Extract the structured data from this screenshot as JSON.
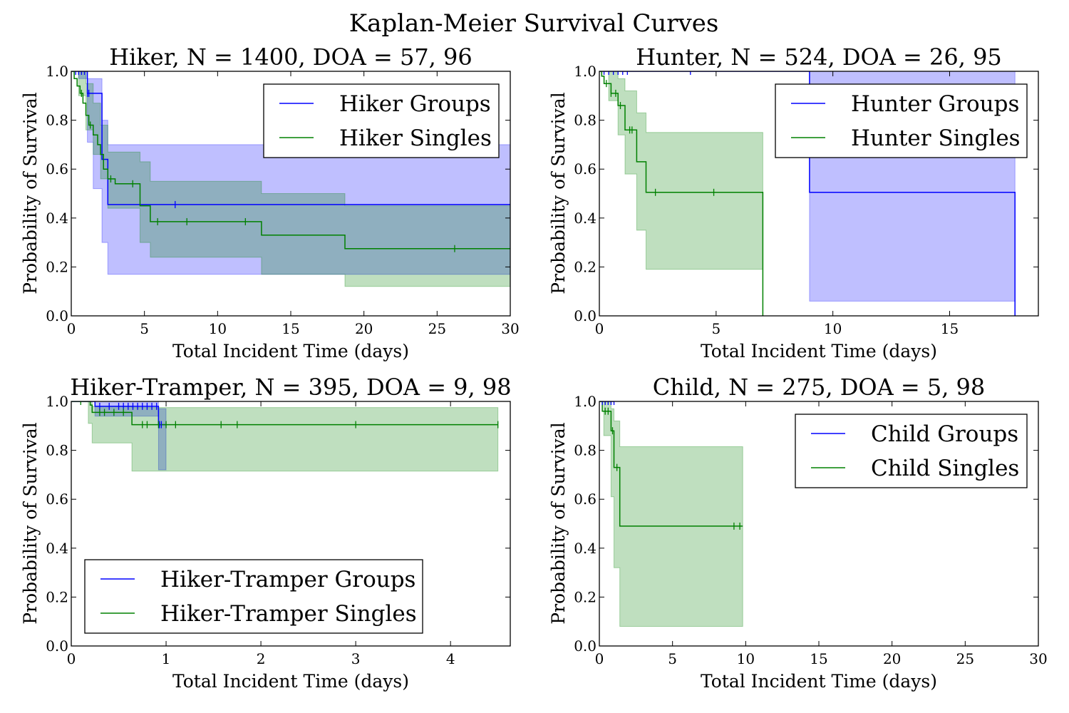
{
  "figure_title": "Kaplan-Meier Survival Curves",
  "colors": {
    "groups": "#0000ff",
    "singles": "#008000",
    "groups_fill": "#0000ff",
    "singles_fill": "#008000"
  },
  "chart_data": [
    {
      "type": "line",
      "title": "Hiker, N = 1400, DOA = 57, 96",
      "xlabel": "Total Incident Time (days)",
      "ylabel": "Probability of Survival",
      "xlim": [
        0,
        30
      ],
      "ylim": [
        0,
        1
      ],
      "xticks": [
        0,
        5,
        10,
        15,
        20,
        25,
        30
      ],
      "yticks": [
        0.0,
        0.2,
        0.4,
        0.6,
        0.8,
        1.0
      ],
      "legend": "upper-right",
      "series": [
        {
          "name": "Hiker Groups",
          "color": "#0000ff",
          "x": [
            0,
            1.1,
            2.1,
            2.5,
            30
          ],
          "y": [
            1.0,
            0.91,
            0.64,
            0.455,
            0.455
          ],
          "ci_x": [
            0,
            0.5,
            1.1,
            1.5,
            2.1,
            2.5,
            30
          ],
          "ci_low": [
            1.0,
            0.97,
            0.71,
            0.52,
            0.3,
            0.17,
            0.17
          ],
          "ci_high": [
            1.0,
            1.0,
            0.97,
            0.97,
            0.8,
            0.7,
            0.7
          ],
          "censored": [
            0.3,
            0.5,
            0.7,
            0.9,
            1.1,
            1.2,
            7.1
          ]
        },
        {
          "name": "Hiker Singles",
          "color": "#008000",
          "x": [
            0,
            0.2,
            0.4,
            0.6,
            0.8,
            1.0,
            1.2,
            1.5,
            1.8,
            2.0,
            2.2,
            2.5,
            3.0,
            4.7,
            5.4,
            13.0,
            18.7,
            30
          ],
          "y": [
            1.0,
            0.97,
            0.94,
            0.91,
            0.87,
            0.82,
            0.78,
            0.74,
            0.7,
            0.66,
            0.6,
            0.56,
            0.54,
            0.45,
            0.385,
            0.33,
            0.275,
            0.275
          ],
          "ci_x": [
            0,
            0.5,
            1.0,
            1.5,
            2.0,
            2.5,
            4.7,
            5.4,
            13.0,
            18.7,
            30
          ],
          "ci_low": [
            1.0,
            0.9,
            0.76,
            0.66,
            0.56,
            0.44,
            0.3,
            0.24,
            0.17,
            0.12,
            0.12
          ],
          "ci_high": [
            1.0,
            1.0,
            0.95,
            0.87,
            0.78,
            0.67,
            0.63,
            0.55,
            0.5,
            0.45,
            0.45
          ],
          "censored": [
            0.7,
            1.3,
            2.7,
            4.2,
            5.9,
            7.9,
            11.9,
            26.2
          ]
        }
      ]
    },
    {
      "type": "line",
      "title": "Hunter, N = 524, DOA = 26, 95",
      "xlabel": "Total Incident Time (days)",
      "ylabel": "Probability of Survival",
      "xlim": [
        0,
        18.8
      ],
      "ylim": [
        0,
        1
      ],
      "xticks": [
        0,
        5,
        10,
        15
      ],
      "yticks": [
        0.0,
        0.2,
        0.4,
        0.6,
        0.8,
        1.0
      ],
      "legend": "upper-right",
      "series": [
        {
          "name": "Hunter Groups",
          "color": "#0000ff",
          "x": [
            0,
            9.0,
            17.8,
            17.8
          ],
          "y": [
            1.0,
            0.505,
            0.505,
            0.0
          ],
          "ci_x": [
            9.0,
            17.8
          ],
          "ci_low": [
            0.06,
            0.06
          ],
          "ci_high": [
            1.0,
            0.96
          ],
          "censored": [
            0.2,
            0.4,
            0.6,
            0.8,
            1.0,
            1.2,
            3.9
          ]
        },
        {
          "name": "Hunter Singles",
          "color": "#008000",
          "x": [
            0,
            0.1,
            0.2,
            0.5,
            0.8,
            1.1,
            1.6,
            2.0,
            7.0,
            7.0
          ],
          "y": [
            1.0,
            0.98,
            0.95,
            0.91,
            0.86,
            0.76,
            0.63,
            0.505,
            0.505,
            0.0
          ],
          "ci_x": [
            0,
            0.4,
            0.8,
            1.1,
            1.6,
            2.0,
            7.0
          ],
          "ci_low": [
            1.0,
            0.88,
            0.74,
            0.58,
            0.35,
            0.19,
            0.19
          ],
          "ci_high": [
            1.0,
            1.0,
            0.97,
            0.92,
            0.83,
            0.75,
            0.75
          ],
          "censored": [
            0.3,
            0.5,
            0.7,
            0.9,
            1.3,
            1.4,
            2.4,
            4.9
          ]
        }
      ]
    },
    {
      "type": "line",
      "title": "Hiker-Tramper, N = 395, DOA = 9, 98",
      "xlabel": "Total Incident Time (days)",
      "ylabel": "Probability of Survival",
      "xlim": [
        0,
        4.63
      ],
      "ylim": [
        0,
        1
      ],
      "xticks": [
        0,
        1,
        2,
        3,
        4
      ],
      "yticks": [
        0.0,
        0.2,
        0.4,
        0.6,
        0.8,
        1.0
      ],
      "legend": "lower-left",
      "series": [
        {
          "name": "Hiker-Tramper Groups",
          "color": "#0000ff",
          "x": [
            0,
            0.25,
            0.92,
            1.0
          ],
          "y": [
            1.0,
            0.98,
            0.905,
            0.905
          ],
          "ci_x": [
            0,
            0.25,
            0.92,
            1.0
          ],
          "ci_low": [
            1.0,
            0.94,
            0.72,
            0.72
          ],
          "ci_high": [
            1.0,
            1.0,
            0.97,
            0.97
          ],
          "censored": [
            0.3,
            0.4,
            0.5,
            0.55,
            0.6,
            0.65,
            0.7,
            0.75,
            0.8,
            0.85,
            0.9,
            0.93,
            0.95
          ]
        },
        {
          "name": "Hiker-Tramper Singles",
          "color": "#008000",
          "x": [
            0,
            0.2,
            0.22,
            0.64,
            4.5
          ],
          "y": [
            1.0,
            0.985,
            0.955,
            0.905,
            0.905
          ],
          "ci_x": [
            0,
            0.18,
            0.22,
            0.64,
            4.5
          ],
          "ci_low": [
            1.0,
            0.91,
            0.83,
            0.715,
            0.715
          ],
          "ci_high": [
            1.0,
            1.0,
            0.98,
            0.975,
            0.975
          ],
          "censored": [
            0.1,
            0.3,
            0.35,
            0.45,
            0.55,
            0.75,
            0.8,
            0.92,
            1.0,
            1.1,
            1.58,
            1.75,
            3.0,
            4.5
          ]
        }
      ]
    },
    {
      "type": "line",
      "title": "Child, N = 275, DOA = 5, 98",
      "xlabel": "Total Incident Time (days)",
      "ylabel": "Probability of Survival",
      "xlim": [
        0,
        30
      ],
      "ylim": [
        0,
        1
      ],
      "xticks": [
        0,
        5,
        10,
        15,
        20,
        25,
        30
      ],
      "yticks": [
        0.0,
        0.2,
        0.4,
        0.6,
        0.8,
        1.0
      ],
      "legend": "upper-right",
      "series": [
        {
          "name": "Child Groups",
          "color": "#0000ff",
          "x": [
            0,
            1.0
          ],
          "y": [
            1.0,
            1.0
          ],
          "ci_x": [],
          "ci_low": [],
          "ci_high": [],
          "censored": [
            0.2,
            0.4,
            0.6,
            0.8,
            1.0
          ]
        },
        {
          "name": "Child Singles",
          "color": "#008000",
          "x": [
            0,
            0.2,
            0.8,
            1.0,
            1.4,
            9.8
          ],
          "y": [
            1.0,
            0.96,
            0.88,
            0.73,
            0.49,
            0.49
          ],
          "ci_x": [
            0,
            0.3,
            0.8,
            1.0,
            1.4,
            9.8
          ],
          "ci_low": [
            1.0,
            0.86,
            0.61,
            0.32,
            0.08,
            0.08
          ],
          "ci_high": [
            1.0,
            1.0,
            0.97,
            0.92,
            0.815,
            0.815
          ],
          "censored": [
            0.4,
            0.6,
            0.9,
            1.2,
            9.2,
            9.6
          ]
        }
      ]
    }
  ]
}
